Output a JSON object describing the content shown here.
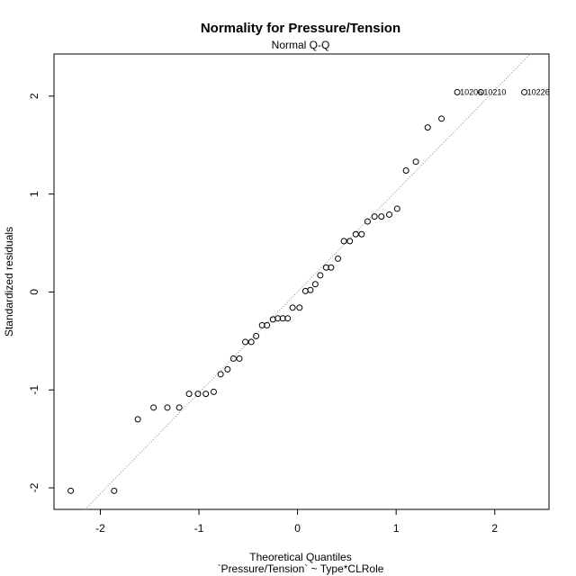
{
  "chart_data": {
    "type": "scatter",
    "title": "Normality for Pressure/Tension",
    "subtitle": "Normal Q-Q",
    "xlabel": "Theoretical Quantiles",
    "xlabel2": "`Pressure/Tension` ~ Type*CLRole",
    "ylabel": "Standardized residuals",
    "xlim": [
      -2.47,
      2.55
    ],
    "ylim": [
      -2.22,
      2.43
    ],
    "xticks": [
      -2,
      -1,
      0,
      1,
      2
    ],
    "yticks": [
      -2,
      -1,
      0,
      1,
      2
    ],
    "xtick_labels": [
      "-2",
      "-1",
      "0",
      "1",
      "2"
    ],
    "ytick_labels": [
      "-2",
      "-1",
      "0",
      "1",
      "2"
    ],
    "grid": false,
    "reference_line": {
      "slope": 1.03,
      "intercept": 0.0,
      "style": "dotted",
      "color": "#888888"
    },
    "point_color": "#000000",
    "points": [
      {
        "x": -2.3,
        "y": -2.03
      },
      {
        "x": -1.86,
        "y": -2.03
      },
      {
        "x": -1.62,
        "y": -1.3
      },
      {
        "x": -1.46,
        "y": -1.18
      },
      {
        "x": -1.32,
        "y": -1.18
      },
      {
        "x": -1.2,
        "y": -1.18
      },
      {
        "x": -1.1,
        "y": -1.04
      },
      {
        "x": -1.01,
        "y": -1.04
      },
      {
        "x": -0.93,
        "y": -1.04
      },
      {
        "x": -0.85,
        "y": -1.02
      },
      {
        "x": -0.78,
        "y": -0.84
      },
      {
        "x": -0.71,
        "y": -0.79
      },
      {
        "x": -0.65,
        "y": -0.68
      },
      {
        "x": -0.59,
        "y": -0.68
      },
      {
        "x": -0.53,
        "y": -0.51
      },
      {
        "x": -0.47,
        "y": -0.51
      },
      {
        "x": -0.42,
        "y": -0.45
      },
      {
        "x": -0.36,
        "y": -0.34
      },
      {
        "x": -0.31,
        "y": -0.34
      },
      {
        "x": -0.25,
        "y": -0.28
      },
      {
        "x": -0.2,
        "y": -0.27
      },
      {
        "x": -0.15,
        "y": -0.27
      },
      {
        "x": -0.1,
        "y": -0.27
      },
      {
        "x": -0.05,
        "y": -0.16
      },
      {
        "x": 0.02,
        "y": -0.16
      },
      {
        "x": 0.08,
        "y": 0.01
      },
      {
        "x": 0.13,
        "y": 0.02
      },
      {
        "x": 0.18,
        "y": 0.08
      },
      {
        "x": 0.23,
        "y": 0.17
      },
      {
        "x": 0.29,
        "y": 0.25
      },
      {
        "x": 0.34,
        "y": 0.25
      },
      {
        "x": 0.41,
        "y": 0.34
      },
      {
        "x": 0.47,
        "y": 0.52
      },
      {
        "x": 0.53,
        "y": 0.52
      },
      {
        "x": 0.59,
        "y": 0.59
      },
      {
        "x": 0.65,
        "y": 0.59
      },
      {
        "x": 0.71,
        "y": 0.72
      },
      {
        "x": 0.78,
        "y": 0.77
      },
      {
        "x": 0.85,
        "y": 0.77
      },
      {
        "x": 0.93,
        "y": 0.79
      },
      {
        "x": 1.01,
        "y": 0.85
      },
      {
        "x": 1.1,
        "y": 1.24
      },
      {
        "x": 1.2,
        "y": 1.33
      },
      {
        "x": 1.32,
        "y": 1.68
      },
      {
        "x": 1.46,
        "y": 1.77
      },
      {
        "x": 1.62,
        "y": 2.04,
        "label": "10206"
      },
      {
        "x": 1.86,
        "y": 2.04,
        "label": "10210"
      },
      {
        "x": 2.3,
        "y": 2.04,
        "label": "10226"
      }
    ]
  }
}
